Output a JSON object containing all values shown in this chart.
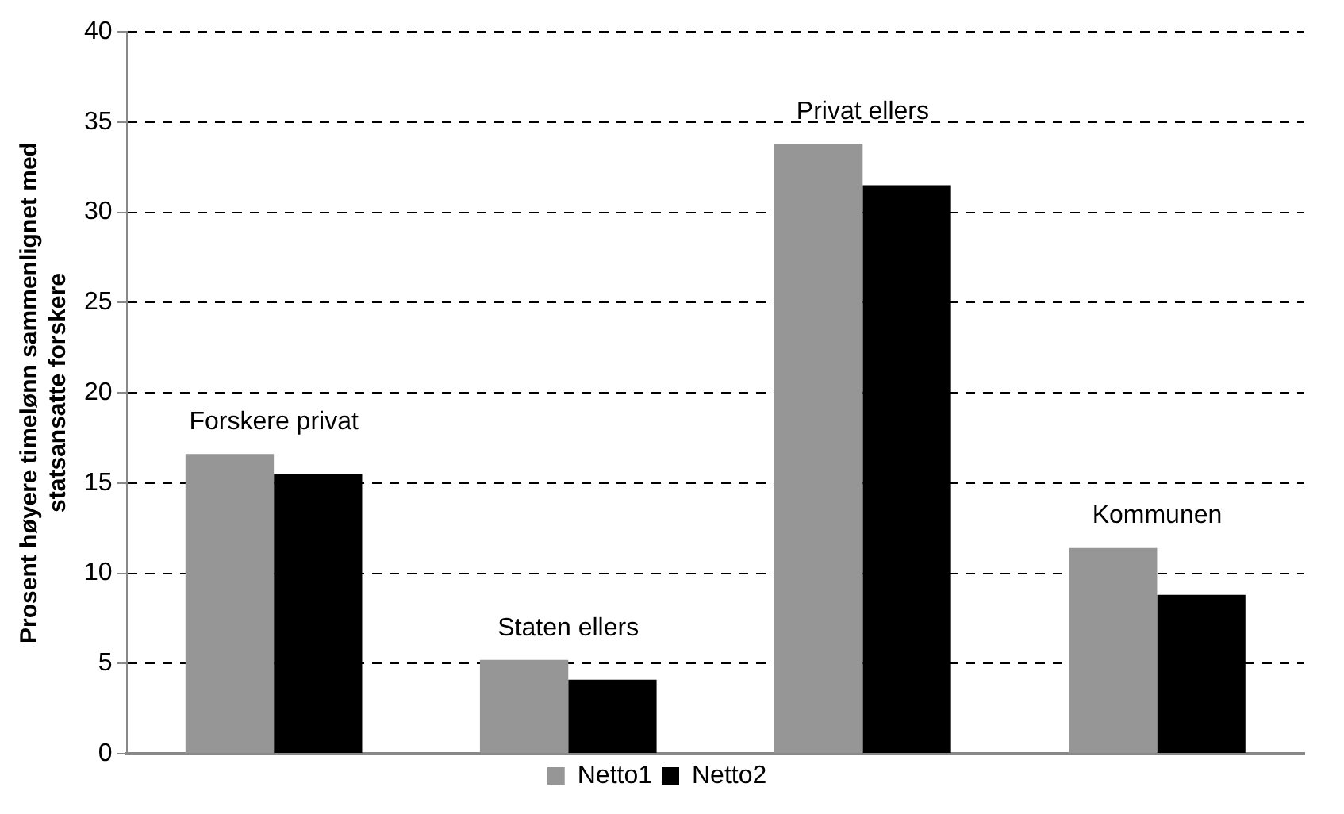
{
  "chart_data": {
    "type": "bar",
    "ylabel": "Prosent høyere timelønn sammenlignet med statsansatte forskere",
    "categories": [
      "Forskere privat",
      "Staten ellers",
      "Privat ellers",
      "Kommunen"
    ],
    "series": [
      {
        "name": "Netto1",
        "color": "#969696",
        "values": [
          16.6,
          5.2,
          33.8,
          11.4
        ]
      },
      {
        "name": "Netto2",
        "color": "#000000",
        "values": [
          15.5,
          4.1,
          31.5,
          8.8
        ]
      }
    ],
    "ylim": [
      0,
      40
    ],
    "yticks": [
      0,
      5,
      10,
      15,
      20,
      25,
      30,
      35,
      40
    ],
    "grid": "y",
    "legend": "bottom"
  }
}
